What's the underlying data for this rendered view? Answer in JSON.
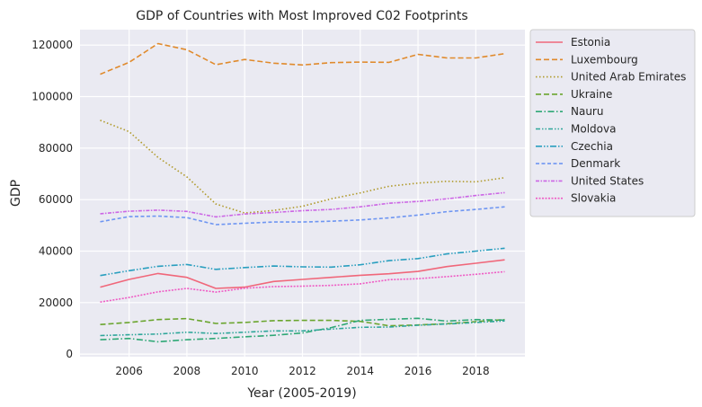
{
  "chart_data": {
    "type": "line",
    "title": "GDP of Countries with Most Improved C02 Footprints",
    "xlabel": "Year (2005-2019)",
    "ylabel": "GDP",
    "xlim": [
      2004.3,
      2019.7
    ],
    "ylim": [
      -1000,
      126000
    ],
    "xticks": [
      2006,
      2008,
      2010,
      2012,
      2014,
      2016,
      2018
    ],
    "yticks": [
      0,
      20000,
      40000,
      60000,
      80000,
      100000,
      120000
    ],
    "grid": true,
    "legend_position": "outside-top-right",
    "x": [
      2005,
      2006,
      2007,
      2008,
      2009,
      2010,
      2011,
      2012,
      2013,
      2014,
      2015,
      2016,
      2017,
      2018,
      2019
    ],
    "series": [
      {
        "name": "Estonia",
        "color": "#f0677a",
        "dash": "solid",
        "values": [
          26000,
          29000,
          31300,
          29800,
          25500,
          26000,
          28200,
          29000,
          29800,
          30600,
          31200,
          32100,
          34000,
          35300,
          36600
        ]
      },
      {
        "name": "Luxembourg",
        "color": "#e08a2c",
        "dash": "dashed",
        "values": [
          108700,
          113300,
          120600,
          118200,
          112400,
          114400,
          113000,
          112300,
          113200,
          113400,
          113300,
          116400,
          115000,
          115000,
          116700
        ]
      },
      {
        "name": "United Arab Emirates",
        "color": "#b09a2a",
        "dash": "dotted",
        "values": [
          90800,
          86400,
          76400,
          68800,
          58300,
          54800,
          55800,
          57400,
          60300,
          62600,
          65200,
          66400,
          67100,
          66900,
          68500
        ]
      },
      {
        "name": "Ukraine",
        "color": "#6aa52e",
        "dash": "dashed",
        "values": [
          11500,
          12300,
          13400,
          13800,
          11900,
          12300,
          13000,
          13100,
          13100,
          12700,
          11000,
          11300,
          11800,
          12600,
          13400
        ]
      },
      {
        "name": "Nauru",
        "color": "#2fa876",
        "dash": "dashdot",
        "values": [
          5600,
          6100,
          4800,
          5600,
          6100,
          6700,
          7300,
          8200,
          10300,
          13100,
          13500,
          13900,
          12800,
          13400,
          13200
        ]
      },
      {
        "name": "Moldova",
        "color": "#2ea69a",
        "dash": "dashdotdot",
        "values": [
          7200,
          7500,
          7800,
          8500,
          8000,
          8500,
          9000,
          9000,
          9700,
          10400,
          10500,
          11200,
          11700,
          12300,
          12900
        ]
      },
      {
        "name": "Czechia",
        "color": "#2a9fbf",
        "dash": "dashdotdot2",
        "values": [
          30500,
          32400,
          34100,
          34800,
          32900,
          33600,
          34200,
          33900,
          33800,
          34700,
          36300,
          37100,
          38900,
          40000,
          41100
        ]
      },
      {
        "name": "Denmark",
        "color": "#6f96f2",
        "dash": "dashed-short",
        "values": [
          51400,
          53400,
          53600,
          53000,
          50300,
          50800,
          51300,
          51300,
          51600,
          52100,
          52900,
          54000,
          55300,
          56200,
          57200
        ]
      },
      {
        "name": "United States",
        "color": "#cc66e5",
        "dash": "dashdot-dense",
        "values": [
          54500,
          55500,
          55900,
          55400,
          53300,
          54400,
          55000,
          55700,
          56200,
          57200,
          58600,
          59300,
          60300,
          61600,
          62700
        ]
      },
      {
        "name": "Slovakia",
        "color": "#ef5ac4",
        "dash": "dotted-dense",
        "values": [
          20200,
          22000,
          24200,
          25500,
          24100,
          25600,
          26200,
          26400,
          26700,
          27300,
          28900,
          29300,
          30100,
          31000,
          32000
        ]
      }
    ]
  }
}
